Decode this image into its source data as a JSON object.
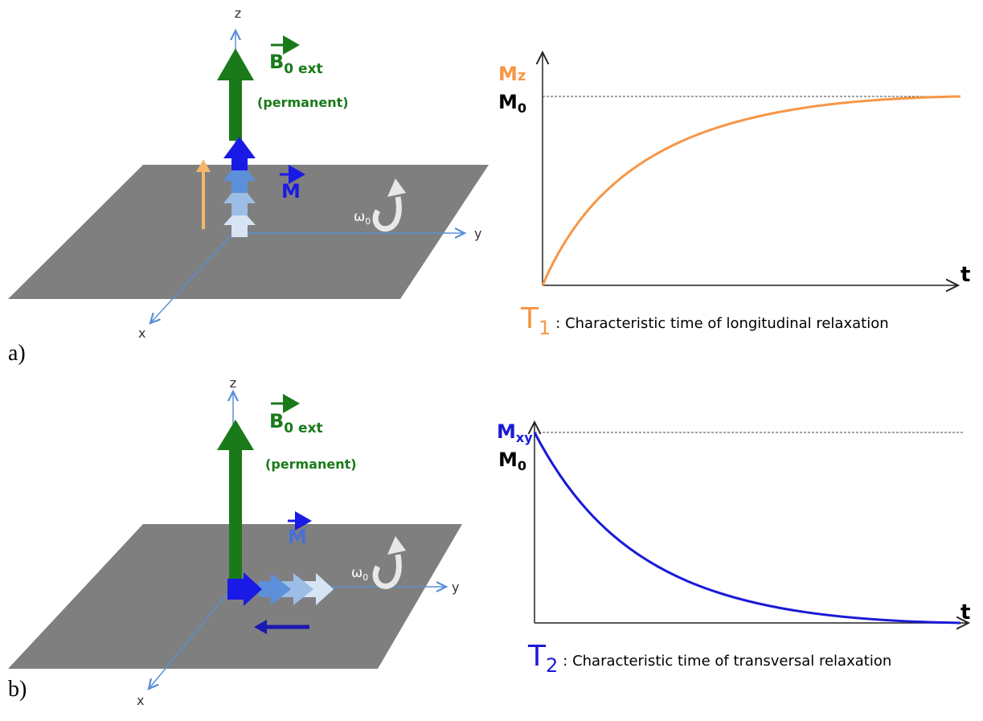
{
  "panels": [
    {
      "label": "a)",
      "diagram": {
        "axes": {
          "z": "z",
          "y": "y",
          "x": "x"
        },
        "field": {
          "symbol": "B",
          "subscript": "0 ext",
          "note": "(permanent)"
        },
        "magnetization": "M",
        "rotation": {
          "symbol": "ω",
          "subscript": "0"
        }
      },
      "graph": {
        "y_axis": {
          "symbol": "M",
          "subscript": "z"
        },
        "reference": {
          "symbol": "M",
          "subscript": "0"
        },
        "x_axis": "t",
        "caption": {
          "symbol": "T",
          "subscript": "1",
          "text": ": Characteristic time of longitudinal relaxation"
        }
      }
    },
    {
      "label": "b)",
      "diagram": {
        "axes": {
          "z": "z",
          "y": "y",
          "x": "x"
        },
        "field": {
          "symbol": "B",
          "subscript": "0 ext",
          "note": "(permanent)"
        },
        "magnetization": "M",
        "rotation": {
          "symbol": "ω",
          "subscript": "0"
        }
      },
      "graph": {
        "y_axis": {
          "symbol": "M",
          "subscript": "xy"
        },
        "reference": {
          "symbol": "M",
          "subscript": "0"
        },
        "x_axis": "t",
        "caption": {
          "symbol": "T",
          "subscript": "2",
          "text": ": Characteristic time of transversal relaxation"
        }
      }
    }
  ]
}
